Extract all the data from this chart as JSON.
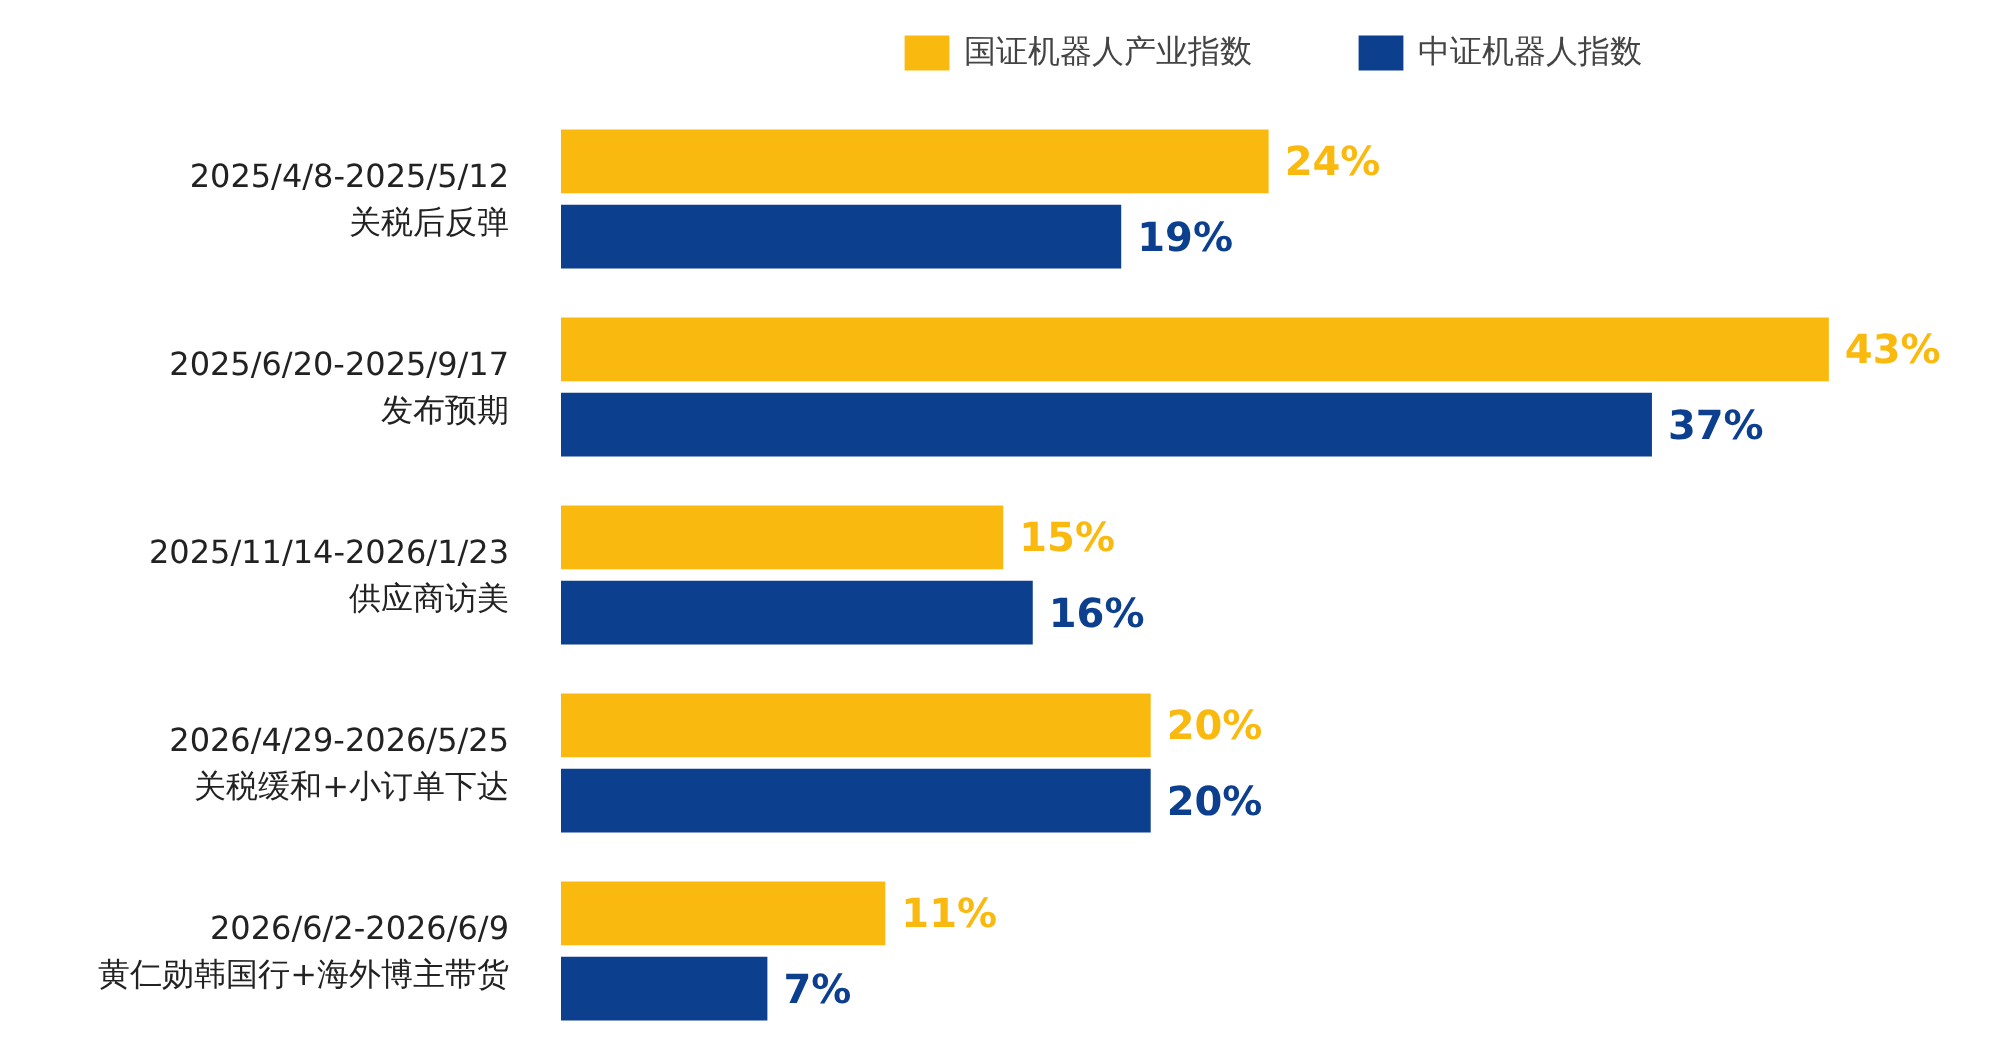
{
  "chart_data": {
    "type": "bar",
    "orientation": "horizontal",
    "categories": [
      "2025/4/8-2025/5/12\n关税后反弹",
      "2025/6/20-2025/9/17\n发布预期",
      "2025/11/14-2026/1/23\n供应商访美",
      "2026/4/29-2026/5/25\n关税缓和+小订单下达",
      "2026/6/2-2026/6/9\n黄仁勋韩国行+海外博主带货"
    ],
    "series": [
      {
        "name": "国证机器人产业指数",
        "color": "#f9b90f",
        "values": [
          24,
          43,
          15,
          20,
          11
        ],
        "value_labels": [
          "24%",
          "43%",
          "15%",
          "20%",
          "11%"
        ]
      },
      {
        "name": "中证机器人指数",
        "color": "#0d3f8f",
        "values": [
          19,
          37,
          16,
          20,
          7
        ],
        "value_labels": [
          "19%",
          "37%",
          "16%",
          "20%",
          "7%"
        ]
      }
    ],
    "legend": "top",
    "grid": false
  }
}
